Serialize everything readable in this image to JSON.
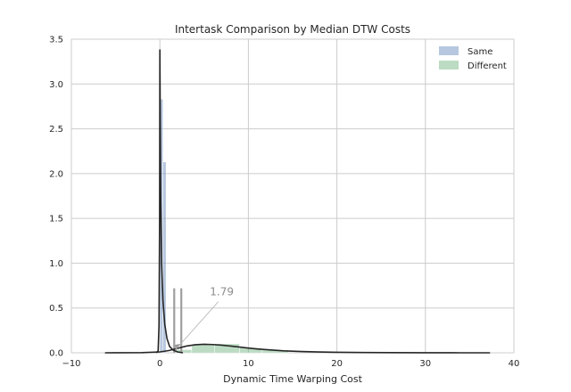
{
  "chart_data": {
    "type": "histogram-kde",
    "title": "Intertask Comparison by Median DTW Costs",
    "xlabel": "Dynamic Time Warping Cost",
    "ylabel": "",
    "xlim": [
      -10,
      40
    ],
    "ylim": [
      0,
      3.5
    ],
    "x_ticks": [
      -10,
      0,
      10,
      20,
      30,
      40
    ],
    "x_tick_labels": [
      "−10",
      "0",
      "10",
      "20",
      "30",
      "40"
    ],
    "y_ticks": [
      0,
      0.5,
      1.0,
      1.5,
      2.0,
      2.5,
      3.0,
      3.5
    ],
    "y_tick_labels": [
      "0.0",
      "0.5",
      "1.0",
      "1.5",
      "2.0",
      "2.5",
      "3.0",
      "3.5"
    ],
    "grid": true,
    "legend_position": "top-right",
    "series": [
      {
        "name": "Same",
        "color": "#4c72b0",
        "bins": [
          {
            "x0": 0.0,
            "x1": 0.35,
            "density": 2.83
          },
          {
            "x0": 0.35,
            "x1": 0.7,
            "density": 2.13
          },
          {
            "x0": 0.7,
            "x1": 1.05,
            "density": 0.0
          },
          {
            "x0": 1.05,
            "x1": 1.4,
            "density": 0.0
          }
        ],
        "kde": [
          [
            -0.4,
            0.0
          ],
          [
            -0.2,
            0.02
          ],
          [
            -0.1,
            0.3
          ],
          [
            -0.03,
            1.5
          ],
          [
            0.0,
            3.38
          ],
          [
            0.04,
            2.6
          ],
          [
            0.1,
            1.7
          ],
          [
            0.2,
            1.0
          ],
          [
            0.35,
            0.58
          ],
          [
            0.55,
            0.32
          ],
          [
            0.8,
            0.16
          ],
          [
            1.1,
            0.07
          ],
          [
            1.5,
            0.03
          ],
          [
            2.0,
            0.01
          ],
          [
            2.6,
            0.0
          ]
        ]
      },
      {
        "name": "Different",
        "color": "#55a868",
        "bins": [
          {
            "x0": 1.8,
            "x1": 3.6,
            "density": 0.035
          },
          {
            "x0": 3.6,
            "x1": 6.2,
            "density": 0.09
          },
          {
            "x0": 6.2,
            "x1": 9.0,
            "density": 0.1
          },
          {
            "x0": 9.0,
            "x1": 11.5,
            "density": 0.055
          },
          {
            "x0": 11.5,
            "x1": 14.5,
            "density": 0.03
          }
        ],
        "kde": [
          [
            -6.2,
            0.0
          ],
          [
            -2,
            0.002
          ],
          [
            0,
            0.01
          ],
          [
            1,
            0.025
          ],
          [
            2,
            0.05
          ],
          [
            3,
            0.075
          ],
          [
            4,
            0.09
          ],
          [
            5,
            0.095
          ],
          [
            6,
            0.092
          ],
          [
            7,
            0.085
          ],
          [
            8,
            0.075
          ],
          [
            9,
            0.064
          ],
          [
            10,
            0.053
          ],
          [
            11,
            0.043
          ],
          [
            12,
            0.035
          ],
          [
            14,
            0.022
          ],
          [
            16,
            0.014
          ],
          [
            18,
            0.009
          ],
          [
            20,
            0.006
          ],
          [
            23,
            0.003
          ],
          [
            26,
            0.002
          ],
          [
            30,
            0.001
          ],
          [
            34,
            0.0
          ],
          [
            37.3,
            0.0
          ]
        ]
      }
    ],
    "markers": [
      {
        "x": 1.62,
        "height": 0.72
      },
      {
        "x": 2.42,
        "height": 0.72
      }
    ],
    "annotations": [
      {
        "text": "1.79",
        "x": 1.79,
        "y": 0.0,
        "text_x": 7.0,
        "text_y": 0.64
      }
    ]
  }
}
